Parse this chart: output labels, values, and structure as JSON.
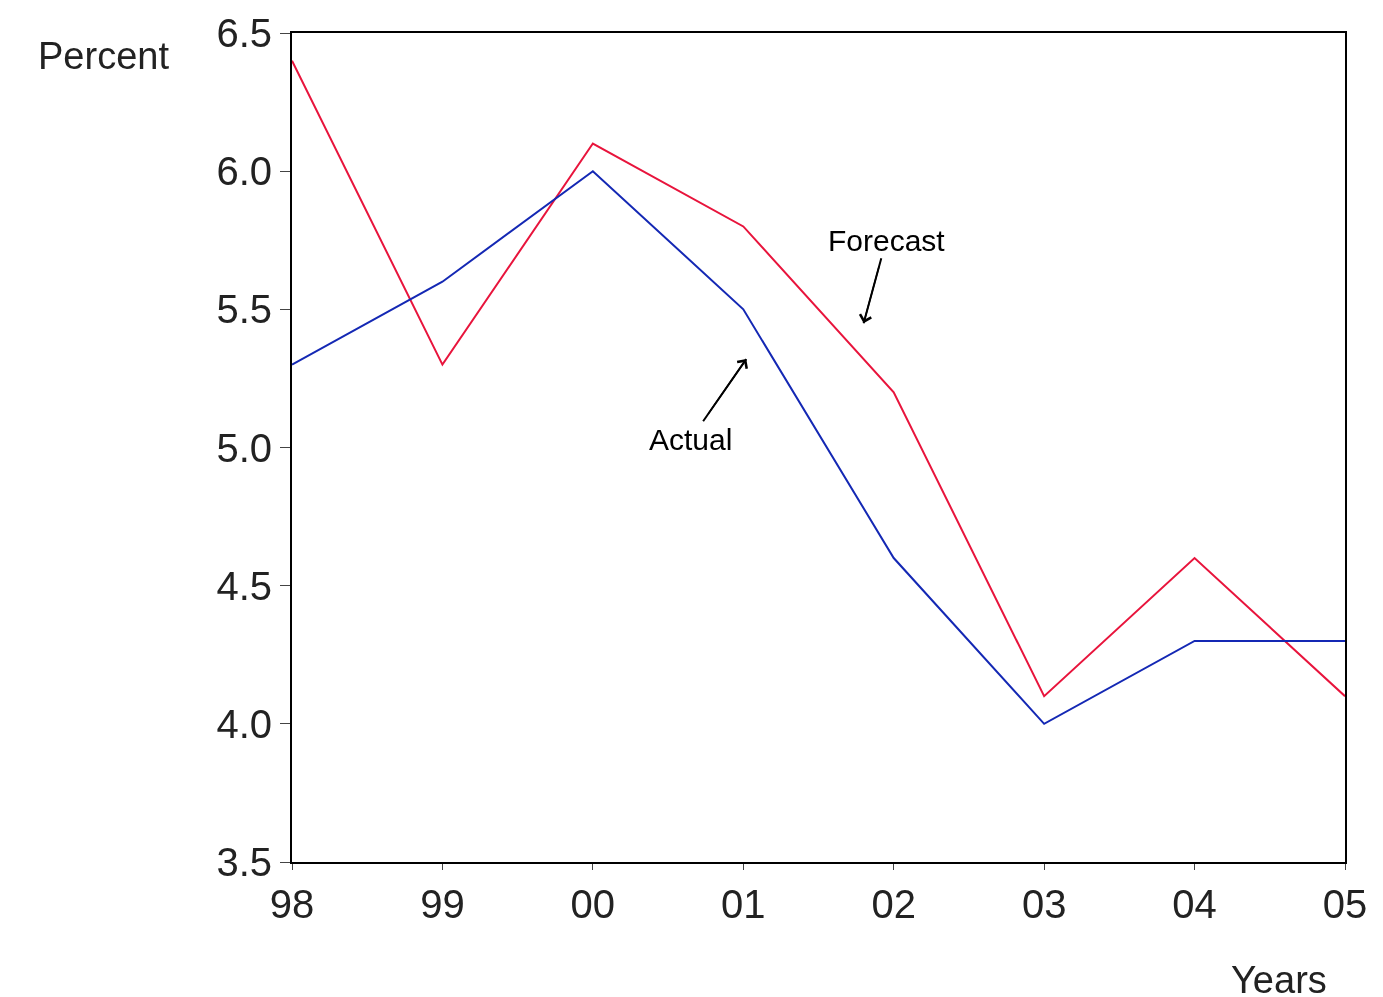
{
  "chart_data": {
    "type": "line",
    "xlabel": "Years",
    "ylabel": "Percent",
    "categories": [
      "98",
      "99",
      "00",
      "01",
      "02",
      "03",
      "04",
      "05"
    ],
    "series": [
      {
        "name": "Forecast",
        "color": "#e8143c",
        "values": [
          6.4,
          5.3,
          6.1,
          5.8,
          5.2,
          4.1,
          4.6,
          4.1
        ]
      },
      {
        "name": "Actual",
        "color": "#1428b4",
        "values": [
          5.3,
          5.6,
          6.0,
          5.5,
          4.6,
          4.0,
          4.3,
          4.3
        ]
      }
    ],
    "ylim": [
      3.5,
      6.5
    ],
    "yticks": [
      {
        "value": 3.5,
        "label": "3.5"
      },
      {
        "value": 4.0,
        "label": "4.0"
      },
      {
        "value": 4.5,
        "label": "4.5"
      },
      {
        "value": 5.0,
        "label": "5.0"
      },
      {
        "value": 5.5,
        "label": "5.5"
      },
      {
        "value": 6.0,
        "label": "6.0"
      },
      {
        "value": 6.5,
        "label": "6.5"
      }
    ],
    "legend": false,
    "marker": "none",
    "line_style": "solid"
  }
}
